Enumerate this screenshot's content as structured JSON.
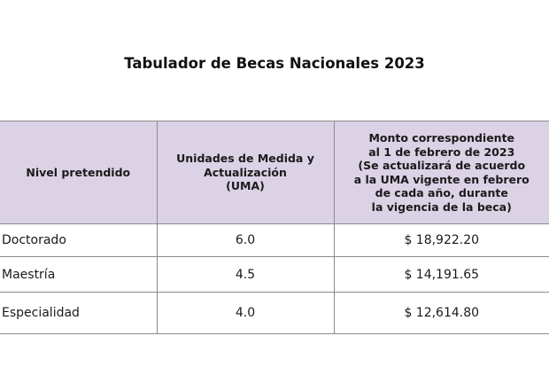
{
  "title": "Tabulador de Becas Nacionales 2023",
  "table": {
    "headers": {
      "col1": [
        "Nivel pretendido"
      ],
      "col2": [
        "Unidades de Medida y",
        "Actualización",
        "(UMA)"
      ],
      "col3": [
        "Monto correspondiente",
        "al 1 de febrero de 2023",
        "(Se actualizará de acuerdo",
        "a la UMA vigente en febrero",
        "de cada año, durante",
        "la vigencia de la beca)"
      ]
    },
    "rows": [
      {
        "nivel": "Doctorado",
        "uma": "6.0",
        "monto": "$ 18,922.20"
      },
      {
        "nivel": "Maestría",
        "uma": "4.5",
        "monto": "$ 14,191.65"
      },
      {
        "nivel": "Especialidad",
        "uma": "4.0",
        "monto": "$ 12,614.80"
      }
    ]
  },
  "colors": {
    "header_background": "#dcd2e6",
    "border": "#8a8a8a"
  }
}
